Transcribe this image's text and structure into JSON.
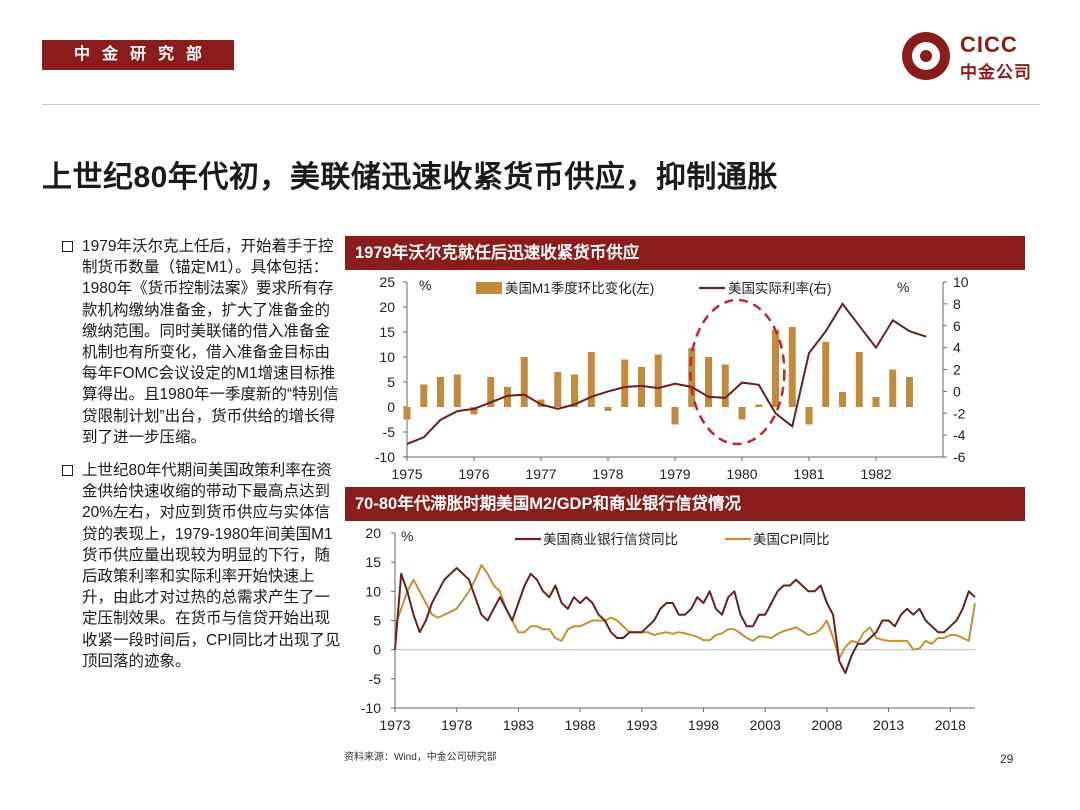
{
  "header": {
    "dept_label": "中金研究部",
    "logo_en": "CICC",
    "logo_cn": "中金公司"
  },
  "title": "上世纪80年代初，美联储迅速收紧货币供应，抑制通胀",
  "bullets": [
    "1979年沃尔克上任后，开始着手于控制货币数量（锚定M1）。具体包括：1980年《货币控制法案》要求所有存款机构缴纳准备金，扩大了准备金的缴纳范围。同时美联储的借入准备金机制也有所变化，借入准备金目标由每年FOMC会议设定的M1增速目标推算得出。且1980年一季度新的“特别信贷限制计划”出台，货币供给的增长得到了进一步压缩。",
    "上世纪80年代期间美国政策利率在资金供给快速收缩的带动下最高点达到20%左右，对应到货币供应与实体信贷的表现上，1979-1980年间美国M1货币供应量出现较为明显的下行，随后政策利率和实际利率开始快速上升，由此才对过热的总需求产生了一定压制效果。在货币与信贷开始出现收紧一段时间后，CPI同比才出现了见顶回落的迹象。"
  ],
  "footer": {
    "source": "资料来源：Wind，中金公司研究部",
    "page": "29"
  },
  "colors": {
    "brand": "#8a1c1c",
    "bar": "#c28a3c",
    "line_dark": "#6b1f1f",
    "cpi": "#c89130"
  },
  "chart_data": [
    {
      "type": "bar+line",
      "title": "1979年沃尔克就任后迅速收紧货币供应",
      "left_unit": "%",
      "right_unit": "%",
      "ylim_left": [
        -10,
        25
      ],
      "yticks_left": [
        25,
        20,
        15,
        10,
        5,
        0,
        -5,
        -10
      ],
      "ylim_right": [
        -6,
        10
      ],
      "yticks_right": [
        10,
        8,
        6,
        4,
        2,
        0,
        -2,
        -4,
        -6
      ],
      "xlim": [
        1975,
        1982.75
      ],
      "xticks": [
        "1975",
        "1976",
        "1977",
        "1978",
        "1979",
        "1980",
        "1981",
        "1982"
      ],
      "annotation": "dashed ellipse highlighting 1979-1980",
      "series": [
        {
          "name": "美国M1季度环比变化(左)",
          "kind": "bar",
          "axis": "left",
          "x": [
            1975.0,
            1975.25,
            1975.5,
            1975.75,
            1976.0,
            1976.25,
            1976.5,
            1976.75,
            1977.0,
            1977.25,
            1977.5,
            1977.75,
            1978.0,
            1978.25,
            1978.5,
            1978.75,
            1979.0,
            1979.25,
            1979.5,
            1979.75,
            1980.0,
            1980.25,
            1980.5,
            1980.75,
            1981.0,
            1981.25,
            1981.5,
            1981.75,
            1982.0,
            1982.25,
            1982.5
          ],
          "values": [
            -2.5,
            4.5,
            6.0,
            6.5,
            -1.5,
            6.0,
            4.0,
            10.0,
            1.5,
            7.0,
            6.5,
            11.0,
            -0.8,
            9.5,
            8.0,
            10.5,
            -3.5,
            11.8,
            10.0,
            8.5,
            -2.5,
            0.5,
            15.5,
            16.0,
            -3.5,
            13.0,
            3.0,
            11.0,
            2.0,
            7.5,
            6.0
          ]
        },
        {
          "name": "美国实际利率(右)",
          "kind": "line",
          "axis": "right",
          "x": [
            1975.0,
            1975.25,
            1975.5,
            1975.75,
            1976.0,
            1976.25,
            1976.5,
            1976.75,
            1977.0,
            1977.25,
            1977.5,
            1977.75,
            1978.0,
            1978.25,
            1978.5,
            1978.75,
            1979.0,
            1979.25,
            1979.5,
            1979.75,
            1980.0,
            1980.25,
            1980.5,
            1980.75,
            1981.0,
            1981.25,
            1981.5,
            1981.75,
            1982.0,
            1982.25,
            1982.5,
            1982.75
          ],
          "values": [
            -4.8,
            -4.2,
            -2.6,
            -1.8,
            -1.6,
            -1.0,
            -0.4,
            -0.3,
            -1.2,
            -1.6,
            -1.2,
            -0.5,
            0.0,
            0.4,
            0.5,
            0.3,
            0.7,
            0.4,
            -0.5,
            -0.6,
            0.8,
            0.6,
            -2.0,
            -3.2,
            3.5,
            5.5,
            8.0,
            6.0,
            4.0,
            6.5,
            5.5,
            5.0
          ]
        }
      ]
    },
    {
      "type": "line",
      "title": "70-80年代滞胀时期美国M2/GDP和商业银行信贷情况",
      "unit": "%",
      "ylim": [
        -10,
        20
      ],
      "yticks": [
        20,
        15,
        10,
        5,
        0,
        -5,
        -10
      ],
      "xlim": [
        1973,
        2020
      ],
      "xticks": [
        "1973",
        "1978",
        "1983",
        "1988",
        "1993",
        "1998",
        "2003",
        "2008",
        "2013",
        "2018"
      ],
      "series": [
        {
          "name": "美国商业银行信贷同比",
          "x": [
            1973,
            1973.5,
            1974,
            1974.5,
            1975,
            1975.5,
            1976,
            1976.5,
            1977,
            1977.5,
            1978,
            1978.5,
            1979,
            1979.5,
            1980,
            1980.5,
            1981,
            1981.5,
            1982,
            1982.5,
            1983,
            1983.5,
            1984,
            1984.5,
            1985,
            1985.5,
            1986,
            1986.5,
            1987,
            1987.5,
            1988,
            1988.5,
            1989,
            1989.5,
            1990,
            1990.5,
            1991,
            1991.5,
            1992,
            1992.5,
            1993,
            1993.5,
            1994,
            1994.5,
            1995,
            1995.5,
            1996,
            1996.5,
            1997,
            1997.5,
            1998,
            1998.5,
            1999,
            1999.5,
            2000,
            2000.5,
            2001,
            2001.5,
            2002,
            2002.5,
            2003,
            2003.5,
            2004,
            2004.5,
            2005,
            2005.5,
            2006,
            2006.5,
            2007,
            2007.5,
            2008,
            2008.5,
            2009,
            2009.5,
            2010,
            2010.5,
            2011,
            2011.5,
            2012,
            2012.5,
            2013,
            2013.5,
            2014,
            2014.5,
            2015,
            2015.5,
            2016,
            2016.5,
            2017,
            2017.5,
            2018,
            2018.5,
            2019,
            2019.5,
            2020
          ],
          "values": [
            0,
            13,
            10,
            6,
            3,
            5,
            8,
            10,
            12,
            13,
            14,
            13,
            12,
            9,
            6,
            5,
            7,
            9,
            7,
            5,
            8,
            11,
            13,
            12,
            10,
            9,
            11,
            8,
            7,
            9,
            8,
            9,
            8,
            6,
            5,
            3,
            2,
            2,
            3,
            3,
            3,
            4,
            5,
            7,
            8,
            8,
            6,
            6,
            7,
            9,
            8,
            10,
            7,
            6,
            9,
            10,
            6,
            4,
            4,
            6,
            6,
            8,
            10,
            11,
            11,
            12,
            11,
            10,
            10,
            11,
            8,
            6,
            -2,
            -4,
            -1,
            1,
            1,
            2,
            3,
            5,
            5,
            4,
            6,
            7,
            6,
            7,
            5,
            4,
            3,
            3,
            4,
            5,
            7,
            10,
            9
          ]
        },
        {
          "name": "美国CPI同比",
          "x": [
            1973,
            1973.5,
            1974,
            1974.5,
            1975,
            1975.5,
            1976,
            1976.5,
            1977,
            1977.5,
            1978,
            1978.5,
            1979,
            1979.5,
            1980,
            1980.5,
            1981,
            1981.5,
            1982,
            1982.5,
            1983,
            1983.5,
            1984,
            1984.5,
            1985,
            1985.5,
            1986,
            1986.5,
            1987,
            1987.5,
            1988,
            1988.5,
            1989,
            1989.5,
            1990,
            1990.5,
            1991,
            1991.5,
            1992,
            1992.5,
            1993,
            1993.5,
            1994,
            1994.5,
            1995,
            1995.5,
            1996,
            1996.5,
            1997,
            1997.5,
            1998,
            1998.5,
            1999,
            1999.5,
            2000,
            2000.5,
            2001,
            2001.5,
            2002,
            2002.5,
            2003,
            2003.5,
            2004,
            2004.5,
            2005,
            2005.5,
            2006,
            2006.5,
            2007,
            2007.5,
            2008,
            2008.5,
            2009,
            2009.5,
            2010,
            2010.5,
            2011,
            2011.5,
            2012,
            2012.5,
            2013,
            2013.5,
            2014,
            2014.5,
            2015,
            2015.5,
            2016,
            2016.5,
            2017,
            2017.5,
            2018,
            2018.5,
            2019,
            2019.5,
            2020
          ],
          "values": [
            4,
            7,
            10,
            12,
            10,
            8,
            6,
            5.5,
            6,
            6.5,
            7,
            8.5,
            10,
            12,
            14.5,
            13,
            11,
            10,
            7,
            5,
            3,
            3,
            4,
            4,
            3.5,
            3.5,
            2,
            1.5,
            3.5,
            4,
            4,
            4.5,
            5,
            5,
            5,
            5.5,
            5,
            4,
            3,
            3,
            3,
            3,
            2.5,
            2.8,
            3,
            2.7,
            3,
            2.8,
            2.5,
            2.2,
            1.6,
            1.6,
            2.5,
            2.8,
            3.5,
            3.5,
            2.8,
            2,
            1.5,
            2.3,
            2.2,
            2,
            2.7,
            3.2,
            3.5,
            3.8,
            3.2,
            2.5,
            2.8,
            3.5,
            5,
            2,
            -1.5,
            0.5,
            1.5,
            1.2,
            3,
            3.8,
            2,
            1.7,
            1.5,
            1.5,
            1.5,
            1.5,
            0,
            0.2,
            1.5,
            1,
            2,
            2,
            2.5,
            2.5,
            2,
            1.5,
            8
          ]
        }
      ]
    }
  ]
}
